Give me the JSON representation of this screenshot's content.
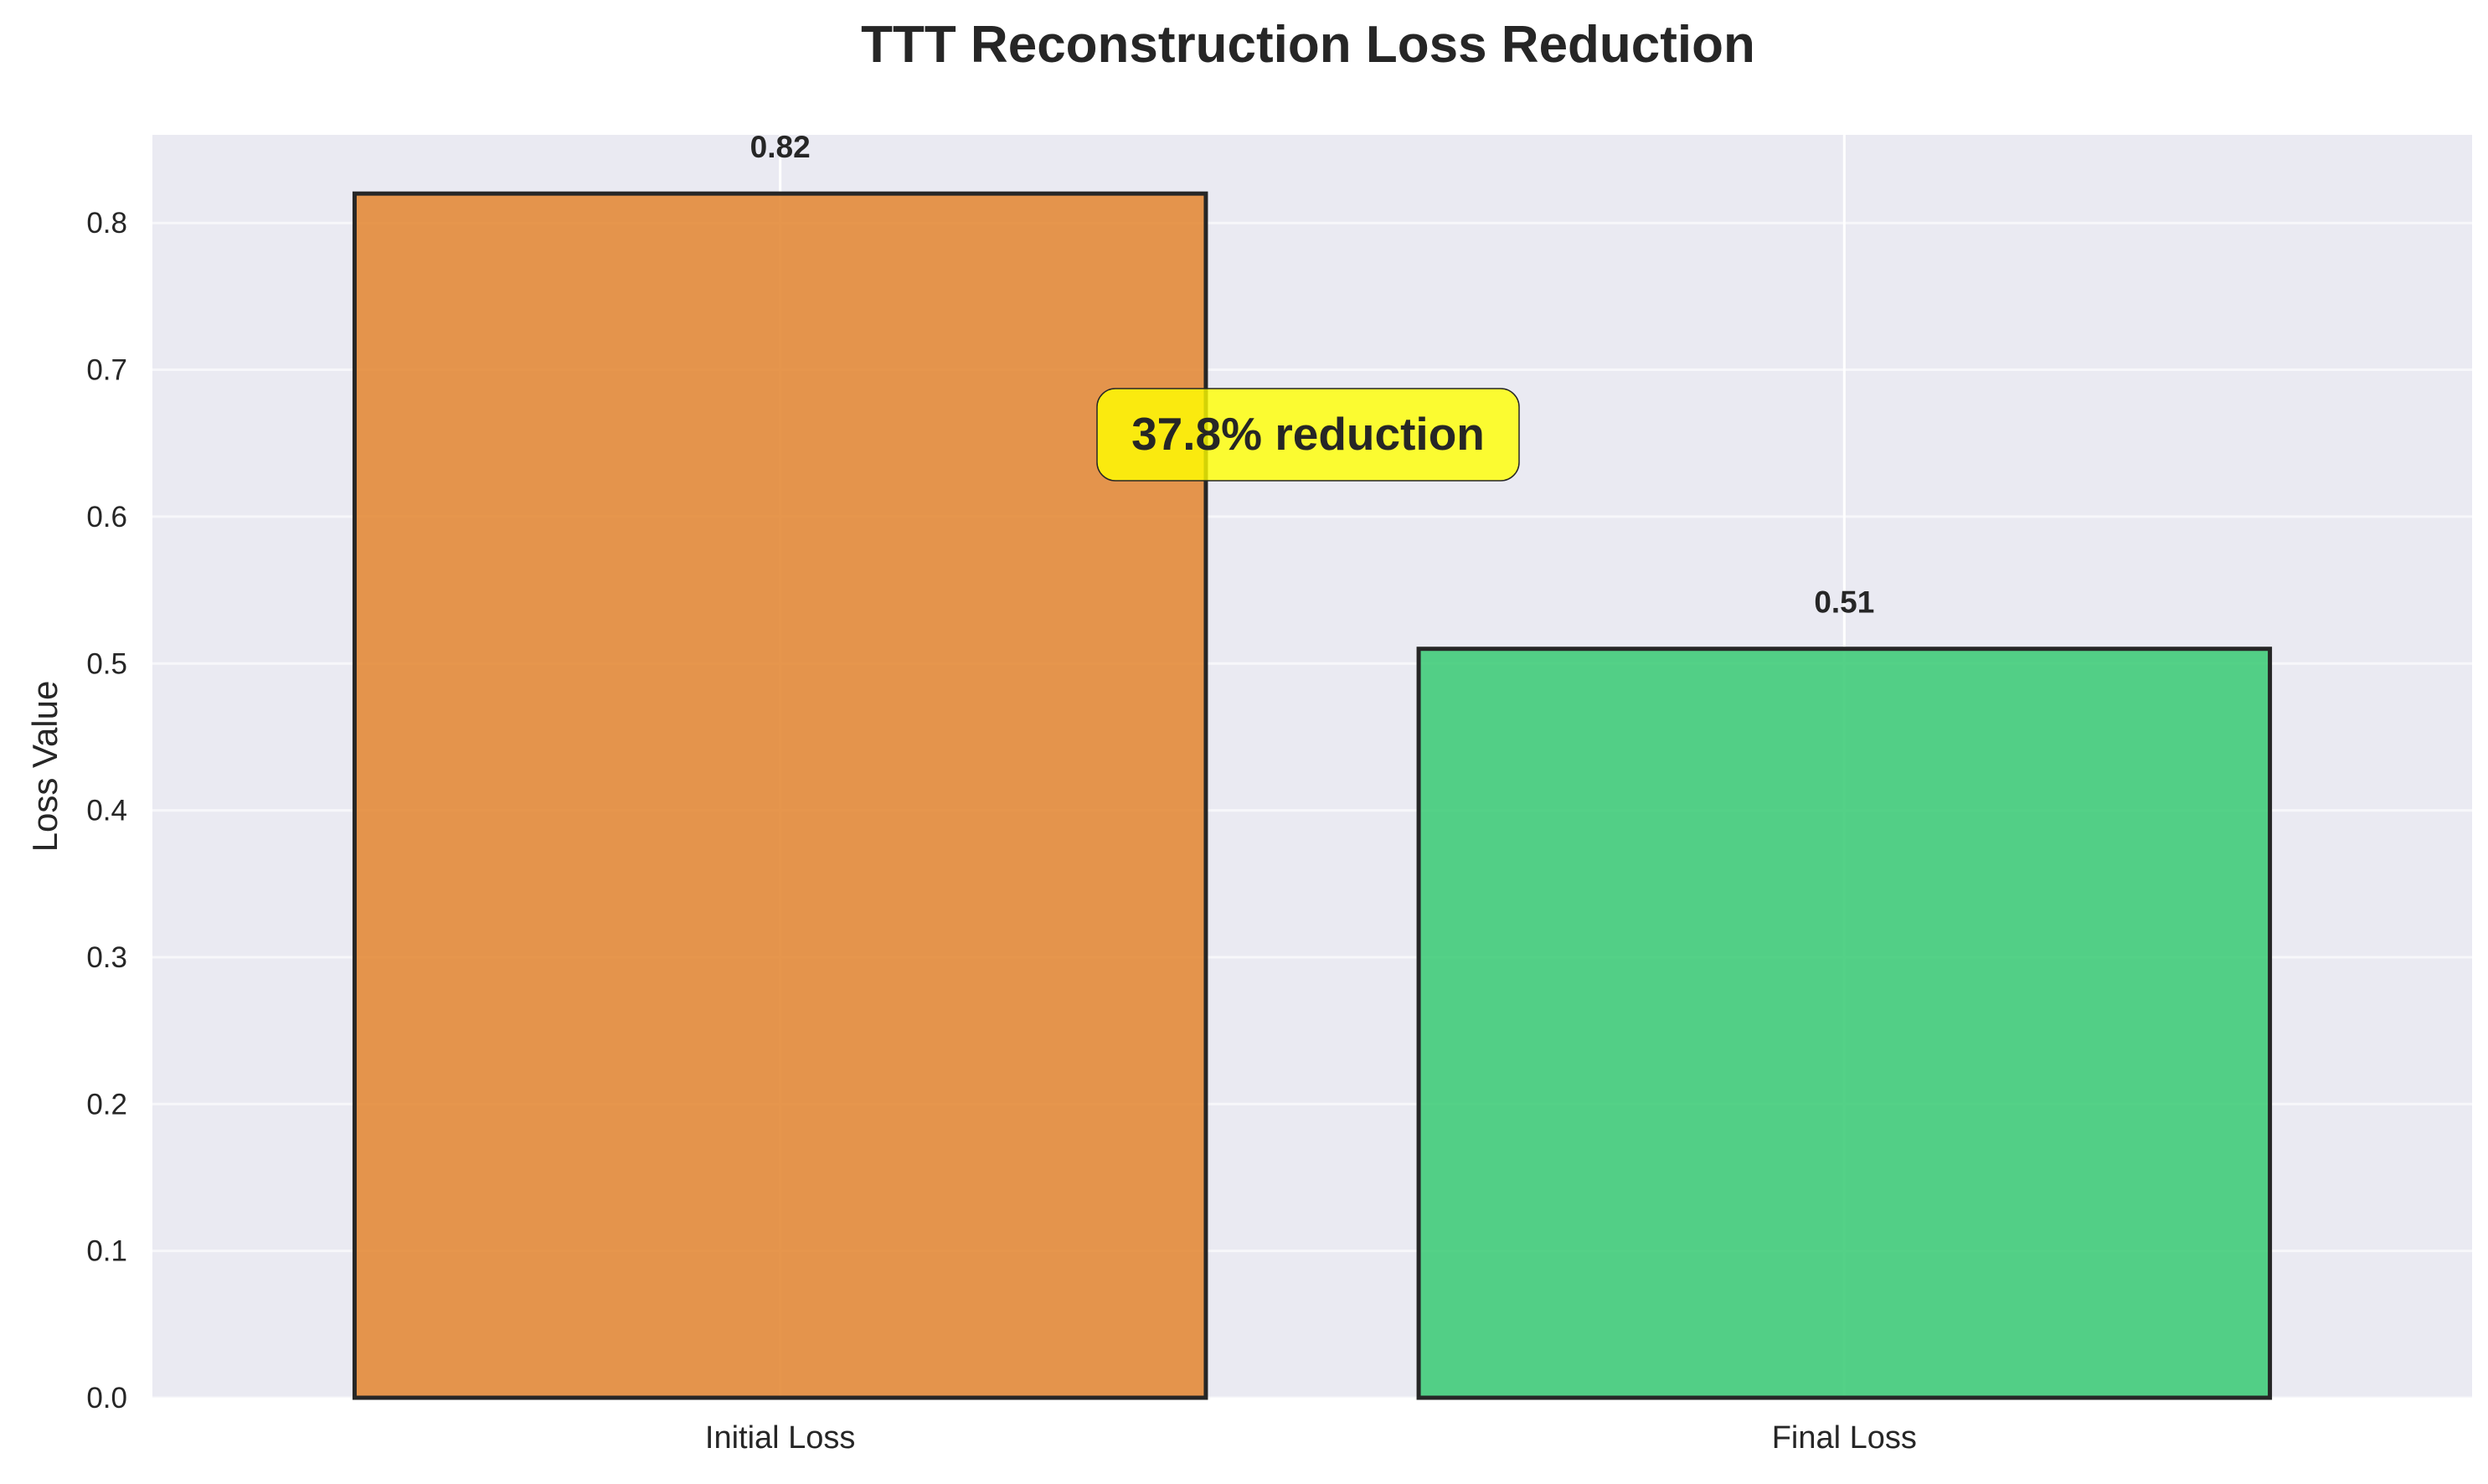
{
  "chart_data": {
    "type": "bar",
    "title": "TTT Reconstruction Loss Reduction",
    "xlabel": "",
    "ylabel": "Loss Value",
    "categories": [
      "Initial Loss",
      "Final Loss"
    ],
    "values": [
      0.82,
      0.51
    ],
    "value_labels": [
      "0.82",
      "0.51"
    ],
    "bar_colors": [
      "#e38b3a",
      "#41cc7a"
    ],
    "ylim": [
      0,
      0.86
    ],
    "yticks": [
      0.0,
      0.1,
      0.2,
      0.3,
      0.4,
      0.5,
      0.6,
      0.7,
      0.8
    ],
    "ytick_labels": [
      "0.0",
      "0.1",
      "0.2",
      "0.3",
      "0.4",
      "0.5",
      "0.6",
      "0.7",
      "0.8"
    ],
    "annotation": "37.8% reduction",
    "grid": true,
    "colors": {
      "background": "#eaeaf2",
      "grid": "#ffffff",
      "bar_edge": "#262626",
      "annotation_fill": "#ffff00"
    }
  }
}
